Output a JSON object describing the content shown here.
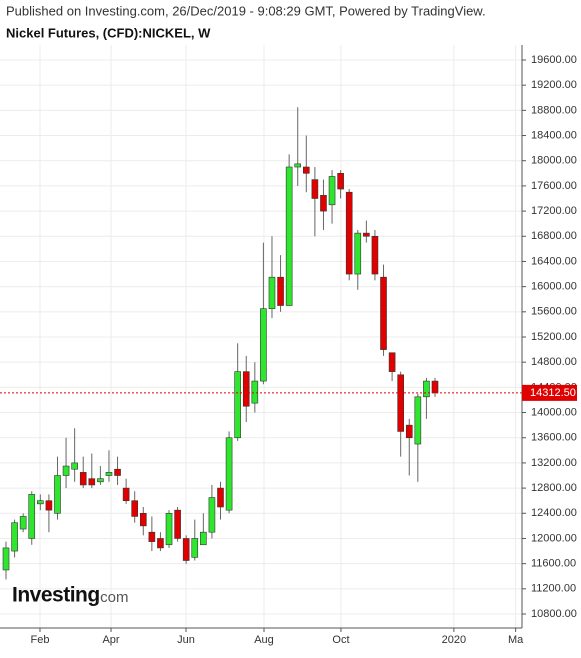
{
  "header": "Published on Investing.com, 26/Dec/2019 - 9:08:29 GMT, Powered by TradingView.",
  "logo": {
    "brand": "Investing",
    "suffix": ".com"
  },
  "chart_data": {
    "type": "candlestick",
    "title": "Nickel Futures, (CFD):NICKEL, W",
    "x": [
      0,
      1,
      2,
      3,
      4,
      5,
      6,
      7,
      8,
      9,
      10,
      11,
      12,
      13,
      14,
      15,
      16,
      17,
      18,
      19,
      20,
      21,
      22,
      23,
      24,
      25,
      26,
      27,
      28,
      29,
      30,
      31,
      32,
      33,
      34,
      35,
      36,
      37,
      38,
      39,
      40,
      41,
      42,
      43,
      44,
      45,
      46,
      47,
      48,
      49,
      50
    ],
    "open": [
      11500,
      11800,
      12150,
      12000,
      12550,
      12600,
      12400,
      13000,
      13100,
      13050,
      12950,
      12900,
      13000,
      13100,
      12800,
      12600,
      12400,
      12100,
      12000,
      11900,
      12450,
      12000,
      11700,
      11900,
      12100,
      12800,
      12450,
      13600,
      14650,
      14150,
      14500,
      15650,
      16150,
      15700,
      17900,
      17900,
      17700,
      17450,
      17300,
      17800,
      17500,
      16200,
      16850,
      16800,
      16150,
      14950,
      14600,
      13800,
      13500,
      14250,
      14500
    ],
    "high": [
      11950,
      12300,
      12400,
      12750,
      12700,
      12700,
      13300,
      13600,
      13750,
      13300,
      13350,
      13150,
      13400,
      13300,
      12950,
      12750,
      12500,
      12350,
      12100,
      12450,
      12500,
      12050,
      12300,
      12400,
      12850,
      12900,
      13700,
      15100,
      14900,
      14800,
      16700,
      16800,
      16500,
      18100,
      18850,
      18400,
      17900,
      17700,
      17850,
      17850,
      17550,
      16900,
      17050,
      16900,
      16350,
      14900,
      14650,
      13900,
      14300,
      14550,
      14550
    ],
    "low": [
      11350,
      11700,
      12100,
      11900,
      12450,
      12100,
      12300,
      12800,
      12900,
      12800,
      12800,
      12850,
      12900,
      12850,
      12550,
      12250,
      12050,
      11800,
      11800,
      11850,
      11950,
      11600,
      11650,
      11900,
      12000,
      12300,
      12400,
      13550,
      13850,
      14000,
      14450,
      15500,
      15600,
      15700,
      17600,
      17500,
      16800,
      16900,
      17000,
      17400,
      16100,
      15950,
      16700,
      16100,
      14900,
      14500,
      13300,
      13000,
      12900,
      13900,
      14250
    ],
    "close": [
      11850,
      12250,
      12350,
      12700,
      12600,
      12450,
      13000,
      13150,
      13200,
      12850,
      12850,
      12950,
      13050,
      13000,
      12600,
      12350,
      12200,
      11950,
      11850,
      12400,
      12000,
      11650,
      12000,
      12100,
      12650,
      12500,
      13600,
      14650,
      14100,
      14500,
      15650,
      16150,
      15700,
      17900,
      17950,
      17800,
      17400,
      17200,
      17750,
      17550,
      16200,
      16850,
      16800,
      16200,
      15000,
      14650,
      13700,
      13600,
      14250,
      14500,
      14312.5
    ],
    "up_color": "#2ee62e",
    "down_color": "#e00000",
    "xlim": [
      -0.7,
      60.14
    ],
    "xticks": [
      {
        "value": 3.96,
        "label": "Feb"
      },
      {
        "value": 12.24,
        "label": "Apr"
      },
      {
        "value": 20.98,
        "label": "Jun"
      },
      {
        "value": 30.07,
        "label": "Aug"
      },
      {
        "value": 39.04,
        "label": "Oct"
      },
      {
        "value": 52.2,
        "label": "2020"
      },
      {
        "value": 59.4,
        "label": "Ma"
      }
    ],
    "ylim": [
      10578,
      19838
    ],
    "yticks": [
      {
        "value": 10800,
        "label": "10800.00"
      },
      {
        "value": 11200,
        "label": "11200.00"
      },
      {
        "value": 11600,
        "label": "11600.00"
      },
      {
        "value": 12000,
        "label": "12000.00"
      },
      {
        "value": 12400,
        "label": "12400.00"
      },
      {
        "value": 12800,
        "label": "12800.00"
      },
      {
        "value": 13200,
        "label": "13200.00"
      },
      {
        "value": 13600,
        "label": "13600.00"
      },
      {
        "value": 14000,
        "label": "14000.00"
      },
      {
        "value": 14400,
        "label": "14400.00"
      },
      {
        "value": 14800,
        "label": "14800.00"
      },
      {
        "value": 15200,
        "label": "15200.00"
      },
      {
        "value": 15600,
        "label": "15600.00"
      },
      {
        "value": 16000,
        "label": "16000.00"
      },
      {
        "value": 16400,
        "label": "16400.00"
      },
      {
        "value": 16800,
        "label": "16800.00"
      },
      {
        "value": 17200,
        "label": "17200.00"
      },
      {
        "value": 17600,
        "label": "17600.00"
      },
      {
        "value": 18000,
        "label": "18000.00"
      },
      {
        "value": 18400,
        "label": "18400.00"
      },
      {
        "value": 18800,
        "label": "18800.00"
      },
      {
        "value": 19200,
        "label": "19200.00"
      },
      {
        "value": 19600,
        "label": "19600.00"
      }
    ],
    "last_price": {
      "value": 14312.5,
      "label": "14312.50"
    },
    "last_price_color": "#e00000",
    "grid": true
  }
}
